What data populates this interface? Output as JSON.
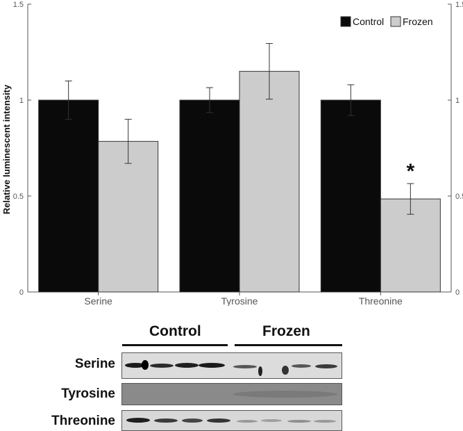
{
  "chart_data": {
    "type": "bar",
    "ylabel": "Relative luminescent intensity",
    "ylim": [
      0,
      1.5
    ],
    "yticks": [
      "0",
      "0.5",
      "1",
      "1.5"
    ],
    "categories": [
      "Serine",
      "Tyrosine",
      "Threonine"
    ],
    "series": [
      {
        "name": "Control",
        "color": "#0a0a0a",
        "values": [
          1.0,
          1.0,
          1.0
        ],
        "errors": [
          0.1,
          0.065,
          0.08
        ]
      },
      {
        "name": "Frozen",
        "color": "#cccccc",
        "values": [
          0.785,
          1.15,
          0.485
        ],
        "errors": [
          0.115,
          0.145,
          0.08
        ]
      }
    ],
    "annotations": [
      {
        "category": "Threonine",
        "series": "Frozen",
        "text": "*"
      }
    ],
    "legend_position": "top-right"
  },
  "blot": {
    "groups": [
      "Control",
      "Frozen"
    ],
    "rows": [
      "Serine",
      "Tyrosine",
      "Threonine"
    ]
  }
}
